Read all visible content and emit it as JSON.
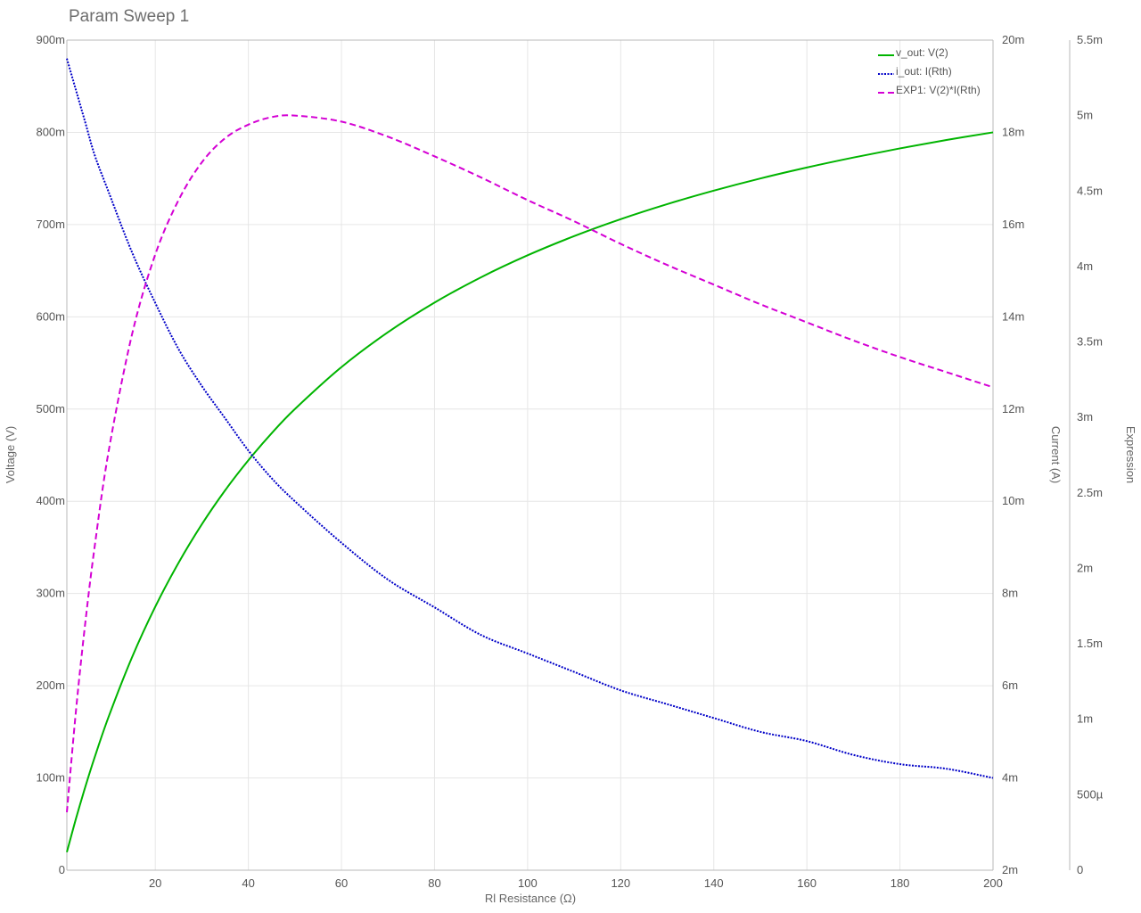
{
  "colors": {
    "v_out": "#00b400",
    "i_out": "#0000c8",
    "exp1": "#d400d4",
    "grid": "#e6e6e6",
    "axis": "#b8b8b8",
    "text": "#555555"
  },
  "chart_data": {
    "type": "line",
    "title": "Param Sweep 1",
    "xlabel": "Rl Resistance (Ω)",
    "x_scale": "linear",
    "xlim": [
      1,
      200
    ],
    "x_ticks": [
      20,
      40,
      60,
      80,
      100,
      120,
      140,
      160,
      180,
      200
    ],
    "x_tick_labels": [
      "20",
      "40",
      "60",
      "80",
      "100",
      "120",
      "140",
      "160",
      "180",
      "200"
    ],
    "grid": true,
    "legend_position": "top-right",
    "axes": [
      {
        "id": "voltage",
        "side": "left",
        "label": "Voltage (V)",
        "ylim": [
          0,
          0.9
        ],
        "ticks": [
          0,
          0.1,
          0.2,
          0.3,
          0.4,
          0.5,
          0.6,
          0.7,
          0.8,
          0.9
        ],
        "tick_labels": [
          "0",
          "100m",
          "200m",
          "300m",
          "400m",
          "500m",
          "600m",
          "700m",
          "800m",
          "900m"
        ]
      },
      {
        "id": "current",
        "side": "right",
        "label": "Current (A)",
        "ylim": [
          0.002,
          0.02
        ],
        "ticks": [
          0.002,
          0.004,
          0.006,
          0.008,
          0.01,
          0.012,
          0.014,
          0.016,
          0.018,
          0.02
        ],
        "tick_labels": [
          "2m",
          "4m",
          "6m",
          "8m",
          "10m",
          "12m",
          "14m",
          "16m",
          "18m",
          "20m"
        ]
      },
      {
        "id": "expression",
        "side": "right",
        "label": "Expression",
        "ylim": [
          0,
          0.0055
        ],
        "ticks": [
          0,
          0.0005,
          0.001,
          0.0015,
          0.002,
          0.0025,
          0.003,
          0.0035,
          0.004,
          0.0045,
          0.005,
          0.0055
        ],
        "tick_labels": [
          "0",
          "500µ",
          "1m",
          "1.5m",
          "2m",
          "2.5m",
          "3m",
          "3.5m",
          "4m",
          "4.5m",
          "5m",
          "5.5m"
        ]
      }
    ],
    "x": [
      1,
      3,
      5,
      7,
      10,
      15,
      20,
      25,
      30,
      35,
      40,
      45,
      50,
      60,
      70,
      80,
      90,
      100,
      110,
      120,
      130,
      140,
      150,
      160,
      170,
      180,
      190,
      200
    ],
    "series": [
      {
        "name": "v_out: V(2)",
        "axis": "voltage",
        "style": "solid",
        "values": [
          0.0196,
          0.0566,
          0.0909,
          0.1228,
          0.1667,
          0.2308,
          0.2857,
          0.3333,
          0.375,
          0.4118,
          0.4444,
          0.4737,
          0.5,
          0.5455,
          0.5833,
          0.6154,
          0.6429,
          0.6667,
          0.6875,
          0.7059,
          0.7222,
          0.7368,
          0.75,
          0.7619,
          0.7727,
          0.7826,
          0.7917,
          0.8
        ]
      },
      {
        "name": "i_out: I(Rth)",
        "axis": "current",
        "style": "dotted",
        "values": [
          0.0196,
          0.0189,
          0.0182,
          0.0175,
          0.0167,
          0.0154,
          0.0143,
          0.0133,
          0.0125,
          0.0118,
          0.0111,
          0.0105,
          0.01,
          0.0091,
          0.0083,
          0.0077,
          0.0071,
          0.0067,
          0.0063,
          0.0059,
          0.0056,
          0.0053,
          0.005,
          0.0048,
          0.0045,
          0.0043,
          0.0042,
          0.004
        ]
      },
      {
        "name": "EXP1: V(2)*I(Rth)",
        "axis": "expression",
        "style": "dashed",
        "values": [
          0.000384,
          0.00107,
          0.00165,
          0.00215,
          0.00278,
          0.00355,
          0.00408,
          0.00444,
          0.00469,
          0.00485,
          0.00494,
          0.00499,
          0.005,
          0.00496,
          0.00486,
          0.00473,
          0.00459,
          0.00444,
          0.0043,
          0.00415,
          0.00401,
          0.00388,
          0.00375,
          0.00363,
          0.00351,
          0.0034,
          0.0033,
          0.0032
        ]
      }
    ]
  }
}
